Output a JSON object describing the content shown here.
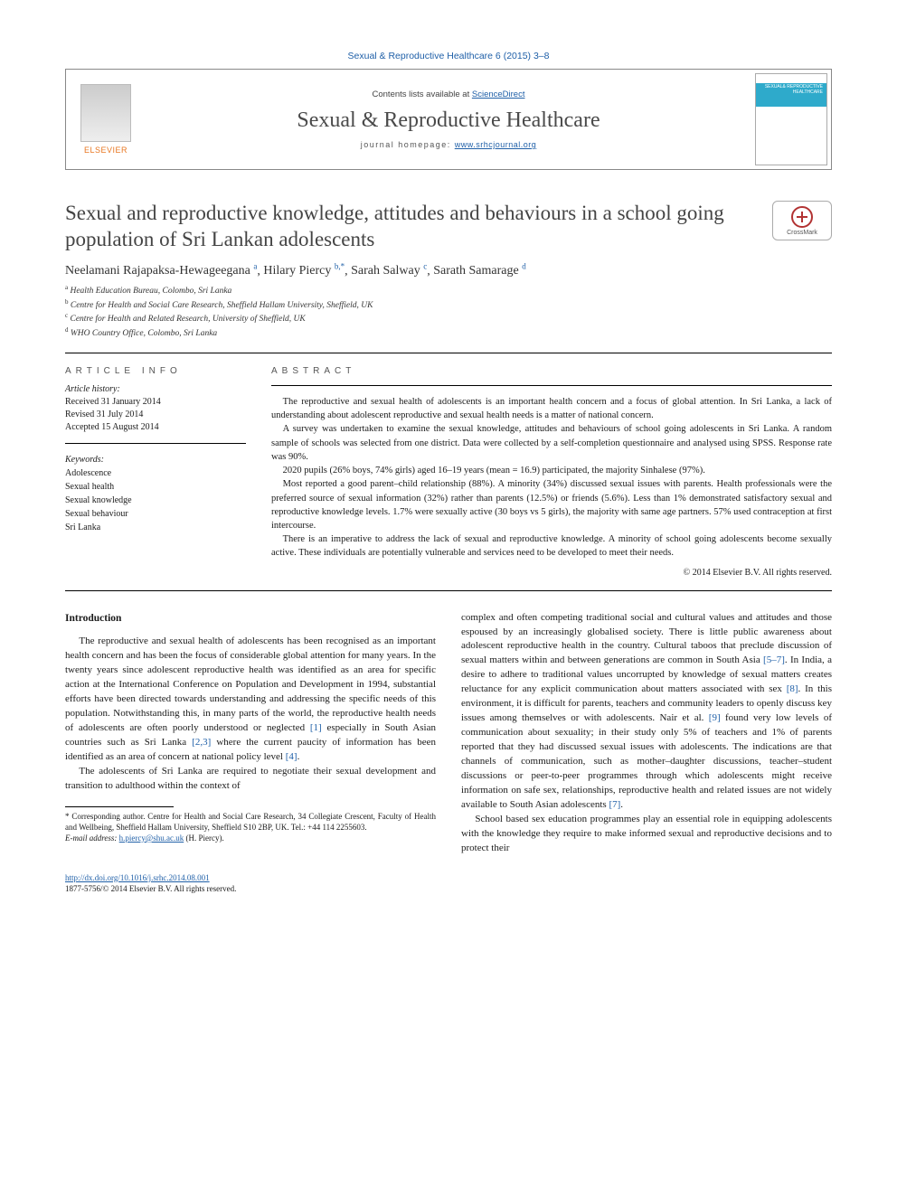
{
  "page_bg": "#ffffff",
  "link_color": "#2060a8",
  "header": {
    "citation": "Sexual & Reproductive Healthcare 6 (2015) 3–8",
    "contents_prefix": "Contents lists available at ",
    "contents_link": "ScienceDirect",
    "journal_name": "Sexual & Reproductive Healthcare",
    "homepage_prefix": "journal homepage: ",
    "homepage_url": "www.srhcjournal.org",
    "elsevier_label": "ELSEVIER",
    "cover_text": "SEXUAL&\nREPRODUCTIVE\nHEALTHCARE"
  },
  "crossmark_label": "CrossMark",
  "title": "Sexual and reproductive knowledge, attitudes and behaviours in a school going population of Sri Lankan adolescents",
  "authors_html": "Neelamani Rajapaksa-Hewageegana <sup>a</sup>, Hilary Piercy <sup>b,*</sup>, Sarah Salway <sup>c</sup>, Sarath Samarage <sup>d</sup>",
  "authors": [
    {
      "name": "Neelamani Rajapaksa-Hewageegana",
      "sup": "a"
    },
    {
      "name": "Hilary Piercy",
      "sup": "b,*"
    },
    {
      "name": "Sarah Salway",
      "sup": "c"
    },
    {
      "name": "Sarath Samarage",
      "sup": "d"
    }
  ],
  "affiliations": [
    {
      "sup": "a",
      "text": "Health Education Bureau, Colombo, Sri Lanka"
    },
    {
      "sup": "b",
      "text": "Centre for Health and Social Care Research, Sheffield Hallam University, Sheffield, UK"
    },
    {
      "sup": "c",
      "text": "Centre for Health and Related Research, University of Sheffield, UK"
    },
    {
      "sup": "d",
      "text": "WHO Country Office, Colombo, Sri Lanka"
    }
  ],
  "info": {
    "heading": "article info",
    "history_label": "Article history:",
    "received": "Received 31 January 2014",
    "revised": "Revised 31 July 2014",
    "accepted": "Accepted 15 August 2014",
    "keywords_label": "Keywords:",
    "keywords": [
      "Adolescence",
      "Sexual health",
      "Sexual knowledge",
      "Sexual behaviour",
      "Sri Lanka"
    ]
  },
  "abstract": {
    "heading": "abstract",
    "paragraphs": [
      "The reproductive and sexual health of adolescents is an important health concern and a focus of global attention. In Sri Lanka, a lack of understanding about adolescent reproductive and sexual health needs is a matter of national concern.",
      "A survey was undertaken to examine the sexual knowledge, attitudes and behaviours of school going adolescents in Sri Lanka. A random sample of schools was selected from one district. Data were collected by a self-completion questionnaire and analysed using SPSS. Response rate was 90%.",
      "2020 pupils (26% boys, 74% girls) aged 16–19 years (mean = 16.9) participated, the majority Sinhalese (97%).",
      "Most reported a good parent–child relationship (88%). A minority (34%) discussed sexual issues with parents. Health professionals were the preferred source of sexual information (32%) rather than parents (12.5%) or friends (5.6%). Less than 1% demonstrated satisfactory sexual and reproductive knowledge levels. 1.7% were sexually active (30 boys vs 5 girls), the majority with same age partners. 57% used contraception at first intercourse.",
      "There is an imperative to address the lack of sexual and reproductive knowledge. A minority of school going adolescents become sexually active. These individuals are potentially vulnerable and services need to be developed to meet their needs."
    ],
    "copyright": "© 2014 Elsevier B.V. All rights reserved."
  },
  "body": {
    "intro_heading": "Introduction",
    "p1_pre": "The reproductive and sexual health of adolescents has been recognised as an important health concern and has been the focus of considerable global attention for many years. In the twenty years since adolescent reproductive health was identified as an area for specific action at the International Conference on Population and Development in 1994, substantial efforts have been directed towards understanding and addressing the specific needs of this population. Notwithstanding this, in many parts of the world, the reproductive health needs of adolescents are often poorly understood or neglected ",
    "p1_c1": "[1]",
    "p1_mid1": " especially in South Asian countries such as Sri Lanka ",
    "p1_c2": "[2,3]",
    "p1_mid2": " where the current paucity of information has been identified as an area of concern at national policy level ",
    "p1_c3": "[4]",
    "p1_end": ".",
    "p2": "The adolescents of Sri Lanka are required to negotiate their sexual development and transition to adulthood within the context of",
    "p3_pre": "complex and often competing traditional social and cultural values and attitudes and those espoused by an increasingly globalised society. There is little public awareness about adolescent reproductive health in the country. Cultural taboos that preclude discussion of sexual matters within and between generations are common in South Asia ",
    "p3_c1": "[5–7]",
    "p3_mid1": ". In India, a desire to adhere to traditional values uncorrupted by knowledge of sexual matters creates reluctance for any explicit communication about matters associated with sex ",
    "p3_c2": "[8]",
    "p3_mid2": ". In this environment, it is difficult for parents, teachers and community leaders to openly discuss key issues among themselves or with adolescents. Nair et al. ",
    "p3_c3": "[9]",
    "p3_mid3": " found very low levels of communication about sexuality; in their study only 5% of teachers and 1% of parents reported that they had discussed sexual issues with adolescents. The indications are that channels of communication, such as mother–daughter discussions, teacher–student discussions or peer-to-peer programmes through which adolescents might receive information on safe sex, relationships, reproductive health and related issues are not widely available to South Asian adolescents ",
    "p3_c4": "[7]",
    "p3_end": ".",
    "p4": "School based sex education programmes play an essential role in equipping adolescents with the knowledge they require to make informed sexual and reproductive decisions and to protect their"
  },
  "footnotes": {
    "corr": "* Corresponding author. Centre for Health and Social Care Research, 34 Collegiate Crescent, Faculty of Health and Wellbeing, Sheffield Hallam University, Sheffield S10 2BP, UK. Tel.: +44 114 2255603.",
    "email_label": "E-mail address:",
    "email": "h.piercy@shu.ac.uk",
    "email_paren": "(H. Piercy)."
  },
  "bottom": {
    "doi": "http://dx.doi.org/10.1016/j.srhc.2014.08.001",
    "issn_line": "1877-5756/© 2014 Elsevier B.V. All rights reserved."
  }
}
